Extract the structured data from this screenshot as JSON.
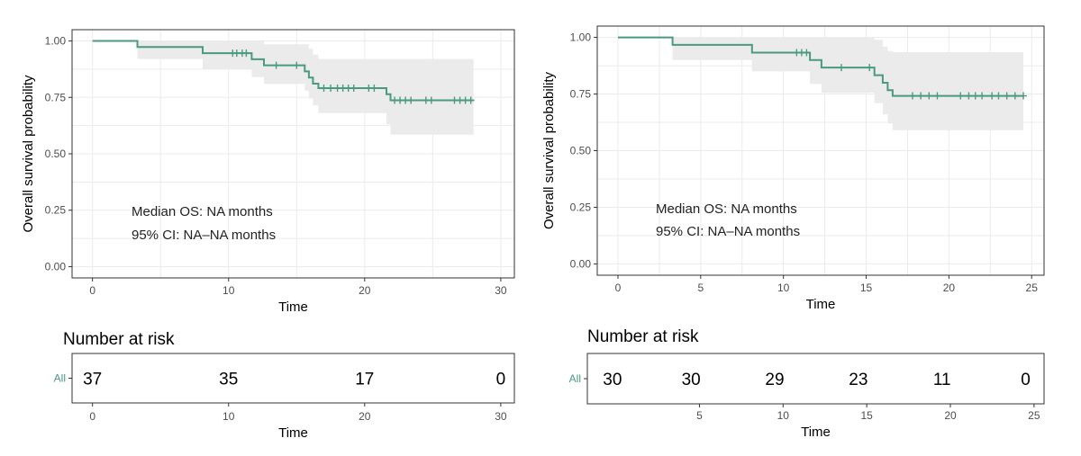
{
  "colors": {
    "curve": "#4a9a7f",
    "ci": "#ebebeb",
    "grid": "#ebebeb",
    "axis": "#333333",
    "tick_text": "#4d4d4d",
    "strata_label": "#4a9a7f"
  },
  "chart_data": [
    {
      "type": "line",
      "step": "post",
      "xlabel": "Time",
      "ylabel": "Overall survival probability",
      "xlim": [
        -1.5,
        31
      ],
      "ylim": [
        -0.05,
        1.05
      ],
      "xticks": [
        "0",
        "10",
        "20",
        "30"
      ],
      "yticks": [
        "0.00",
        "0.25",
        "0.50",
        "0.75",
        "1.00"
      ],
      "grid": true,
      "annotation": [
        "Median OS: NA months",
        "95% CI: NA–NA months"
      ],
      "series": [
        {
          "steps": [
            [
              0,
              1.0
            ],
            [
              3.3,
              0.973
            ],
            [
              8.1,
              0.946
            ],
            [
              11.7,
              0.919
            ],
            [
              12.6,
              0.892
            ],
            [
              15.6,
              0.865
            ],
            [
              15.9,
              0.838
            ],
            [
              16.2,
              0.811
            ],
            [
              16.6,
              0.791
            ],
            [
              21.6,
              0.764
            ],
            [
              21.9,
              0.737
            ]
          ],
          "end": 28.0,
          "ci_lower": [
            1.0,
            0.92,
            0.875,
            0.84,
            0.81,
            0.78,
            0.745,
            0.715,
            0.68,
            0.63,
            0.585
          ],
          "ci_upper": [
            1.0,
            1.0,
            1.0,
            1.0,
            0.985,
            0.985,
            0.965,
            0.94,
            0.92,
            0.92,
            0.92
          ],
          "censor_x": [
            10.3,
            10.6,
            11.0,
            11.3,
            13.5,
            15.0,
            17.0,
            17.5,
            18.0,
            18.4,
            18.8,
            19.2,
            20.3,
            20.7,
            22.2,
            22.6,
            23.0,
            23.4,
            24.5,
            24.9,
            26.6,
            27.0,
            27.4,
            27.8
          ]
        }
      ],
      "risk_table": {
        "title": "Number at risk",
        "strata_label": "All",
        "xlabel": "Time",
        "xlim": [
          -1.5,
          31
        ],
        "xticks": [
          "0",
          "10",
          "20",
          "30"
        ],
        "times": [
          0,
          10,
          20,
          30
        ],
        "counts": [
          "37",
          "35",
          "17",
          "0"
        ]
      }
    },
    {
      "type": "line",
      "step": "post",
      "xlabel": "Time",
      "ylabel": "Overall survival probability",
      "xlim": [
        -1.25,
        25.75
      ],
      "ylim": [
        -0.05,
        1.05
      ],
      "xticks": [
        "0",
        "5",
        "10",
        "15",
        "20",
        "25"
      ],
      "yticks": [
        "0.00",
        "0.25",
        "0.50",
        "0.75",
        "1.00"
      ],
      "grid": true,
      "annotation": [
        "Median OS: NA months",
        "95% CI: NA–NA months"
      ],
      "series": [
        {
          "steps": [
            [
              0,
              1.0
            ],
            [
              3.3,
              0.967
            ],
            [
              8.1,
              0.933
            ],
            [
              11.6,
              0.9
            ],
            [
              12.3,
              0.867
            ],
            [
              15.5,
              0.833
            ],
            [
              16.0,
              0.8
            ],
            [
              16.3,
              0.767
            ],
            [
              16.6,
              0.742
            ]
          ],
          "end": 24.5,
          "ci_lower": [
            1.0,
            0.9,
            0.85,
            0.795,
            0.755,
            0.71,
            0.66,
            0.62,
            0.59
          ],
          "ci_upper": [
            1.0,
            1.0,
            1.0,
            1.0,
            1.0,
            0.99,
            0.96,
            0.94,
            0.935
          ],
          "censor_x": [
            10.8,
            11.1,
            11.4,
            13.5,
            15.2,
            17.8,
            18.3,
            18.8,
            19.3,
            20.7,
            21.2,
            21.6,
            22.0,
            22.6,
            23.0,
            23.5,
            24.0,
            24.5
          ]
        }
      ],
      "risk_table": {
        "title": "Number at risk",
        "strata_label": "All",
        "xlabel": "Time",
        "xlim": [
          -1.7,
          25.6
        ],
        "xticks": [
          "5",
          "10",
          "15",
          "20",
          "25"
        ],
        "times": [
          -0.2,
          4.5,
          9.5,
          14.5,
          19.5,
          24.5
        ],
        "counts": [
          "30",
          "30",
          "29",
          "23",
          "11",
          "0"
        ]
      }
    }
  ]
}
